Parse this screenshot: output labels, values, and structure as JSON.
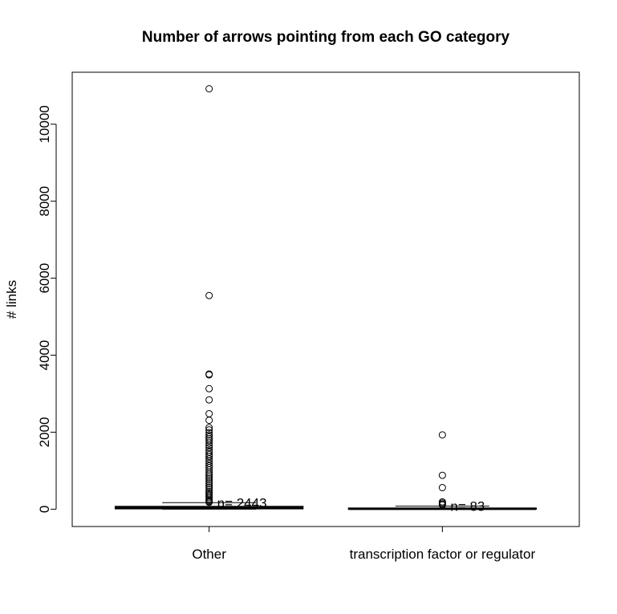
{
  "chart_data": {
    "type": "boxplot",
    "title": "Number of arrows pointing from each GO category",
    "ylabel": "# links",
    "xlabel": "",
    "ylim": [
      -450,
      11350
    ],
    "yticks": [
      0,
      2000,
      4000,
      6000,
      8000,
      10000
    ],
    "grid": false,
    "categories": [
      "Other",
      "transcription factor or regulator"
    ],
    "boxes": [
      {
        "category": "Other",
        "n_label": "n= 2443",
        "whisker_low": 0,
        "q1": 12,
        "median": 30,
        "q3": 70,
        "whisker_high": 170,
        "outliers": [
          10920,
          5550,
          3510,
          3490,
          3130,
          2840,
          2480,
          2310,
          2120,
          2060,
          1990,
          1930,
          1880,
          1830,
          1780,
          1720,
          1660,
          1600,
          1530,
          1480,
          1420,
          1370,
          1310,
          1250,
          1190,
          1130,
          1080,
          1020,
          960,
          910,
          860,
          810,
          760,
          710,
          660,
          610,
          560,
          510,
          460,
          420,
          380,
          340,
          300,
          260,
          230,
          200,
          180
        ]
      },
      {
        "category": "transcription factor or regulator",
        "n_label": "n= 83",
        "whisker_low": 0,
        "q1": 4,
        "median": 10,
        "q3": 25,
        "whisker_high": 80,
        "outliers": [
          1930,
          880,
          560,
          190,
          160,
          130,
          110
        ]
      }
    ]
  }
}
